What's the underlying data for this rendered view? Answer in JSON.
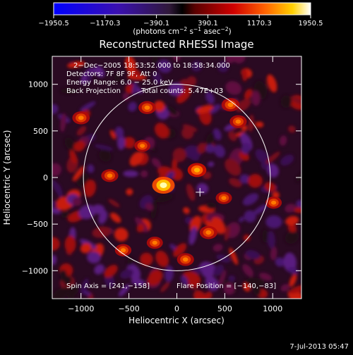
{
  "colorbar": {
    "ticks": [
      "−1950.5",
      "−1170.3",
      "−390.1",
      "390.1",
      "1170.3",
      "1950.5"
    ],
    "units_prefix": "(photons cm",
    "units_sup1": "−2",
    "units_mid": " s",
    "units_sup2": "−1",
    "units_asec": " asec",
    "units_sup3": "−2",
    "units_suffix": ")"
  },
  "timestamp": "7-Jul-2013 05:47",
  "chart_data": {
    "type": "heatmap",
    "title": "Reconstructed RHESSI Image",
    "xlabel": "Heliocentric X (arcsec)",
    "ylabel": "Heliocentric Y (arcsec)",
    "xlim": [
      -1300,
      1300
    ],
    "ylim": [
      -1300,
      1300
    ],
    "x_ticks": [
      -1000,
      -500,
      0,
      500,
      1000
    ],
    "y_ticks": [
      -1000,
      -500,
      0,
      500,
      1000
    ],
    "x_tick_labels": [
      "−1000",
      "−500",
      "0",
      "500",
      "1000"
    ],
    "y_tick_labels": [
      "−1000",
      "−500",
      "0",
      "500",
      "1000"
    ],
    "color_range": [
      -1950.5,
      1950.5
    ],
    "solar_radius_arcsec": 975,
    "annotations": [
      "2−Dec−2005 18:53:52.000 to 18:58:34.000",
      "Detectors: 7F 8F 9F, Att 0",
      "Energy Range: 6.0 − 25.0 keV",
      "Back Projection",
      "Total counts: 5.47E+03"
    ],
    "spin_axis_label": "Spin Axis = [241,−158]",
    "flare_position_label": "Flare Position = [−140,−83]",
    "spin_axis": [
      241,
      -158
    ],
    "flare_position": [
      -140,
      -83
    ],
    "hot_spots": [
      {
        "x": -140,
        "y": -83,
        "intensity": 1950
      },
      {
        "x": 210,
        "y": 80,
        "intensity": 1300
      },
      {
        "x": 330,
        "y": -590,
        "intensity": 1100
      },
      {
        "x": -310,
        "y": 750,
        "intensity": 1050
      },
      {
        "x": 640,
        "y": 600,
        "intensity": 1000
      },
      {
        "x": -700,
        "y": 20,
        "intensity": 1000
      },
      {
        "x": 90,
        "y": -880,
        "intensity": 1000
      },
      {
        "x": 560,
        "y": 780,
        "intensity": 1150
      },
      {
        "x": 490,
        "y": -220,
        "intensity": 850
      },
      {
        "x": -560,
        "y": -780,
        "intensity": 900
      },
      {
        "x": -1000,
        "y": 640,
        "intensity": 1050
      },
      {
        "x": -230,
        "y": -700,
        "intensity": 850
      },
      {
        "x": 1010,
        "y": -270,
        "intensity": 850
      },
      {
        "x": -360,
        "y": 340,
        "intensity": 800
      }
    ]
  }
}
